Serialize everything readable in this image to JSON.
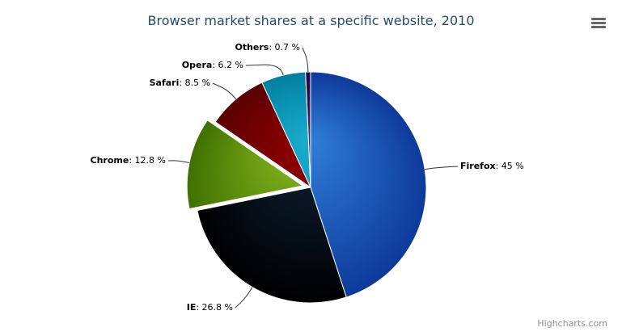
{
  "chart_data": {
    "type": "pie",
    "title": "Browser market shares at a specific website, 2010",
    "unit_suffix": " %",
    "slices": [
      {
        "name": "Firefox",
        "value": 45,
        "color": "#2f7ed8",
        "sliced": false
      },
      {
        "name": "IE",
        "value": 26.8,
        "color": "#0d233a",
        "sliced": false
      },
      {
        "name": "Chrome",
        "value": 12.8,
        "color": "#8bbc21",
        "sliced": true
      },
      {
        "name": "Safari",
        "value": 8.5,
        "color": "#910000",
        "sliced": false
      },
      {
        "name": "Opera",
        "value": 6.2,
        "color": "#1aadce",
        "sliced": false
      },
      {
        "name": "Others",
        "value": 0.7,
        "color": "#492970",
        "sliced": false
      }
    ]
  },
  "menu_icon": "hamburger-menu-icon",
  "credits": "Highcharts.com"
}
